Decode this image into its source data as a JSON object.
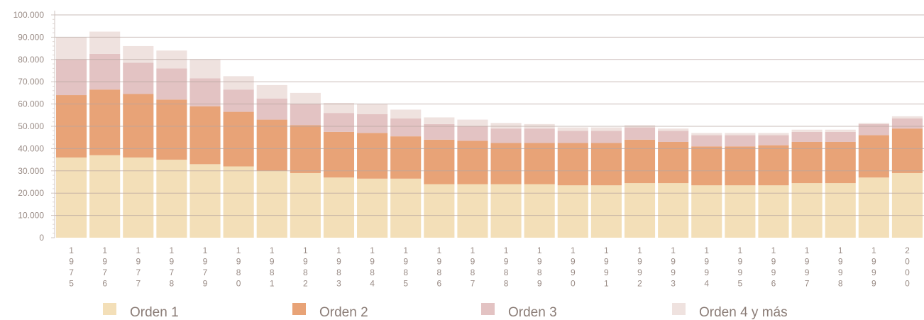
{
  "chart_data": {
    "type": "bar",
    "stacked": true,
    "categories": [
      "1975",
      "1976",
      "1977",
      "1978",
      "1979",
      "1980",
      "1981",
      "1982",
      "1983",
      "1984",
      "1985",
      "1986",
      "1987",
      "1988",
      "1989",
      "1990",
      "1991",
      "1992",
      "1993",
      "1994",
      "1995",
      "1996",
      "1997",
      "1998",
      "1999",
      "2000"
    ],
    "series": [
      {
        "name": "Orden 1",
        "color": "#f3dfb8",
        "values": [
          36000,
          37000,
          36000,
          35000,
          33000,
          32000,
          30000,
          29000,
          27000,
          26500,
          26500,
          24000,
          24000,
          24000,
          24000,
          23500,
          23500,
          24500,
          24500,
          23500,
          23500,
          23500,
          24500,
          24500,
          27000,
          29000
        ]
      },
      {
        "name": "Orden 2",
        "color": "#e8a377",
        "values": [
          28000,
          29500,
          28500,
          27000,
          26000,
          24500,
          23000,
          21500,
          20500,
          20500,
          19000,
          20000,
          19500,
          18500,
          18500,
          19000,
          19000,
          19500,
          18500,
          17500,
          17500,
          18000,
          18500,
          18500,
          19000,
          20000
        ]
      },
      {
        "name": "Orden 3",
        "color": "#e3c3c3",
        "values": [
          16000,
          16000,
          14000,
          14000,
          12500,
          10000,
          9500,
          9500,
          8500,
          8500,
          8000,
          7000,
          6500,
          6500,
          6500,
          5500,
          5500,
          5500,
          5000,
          5000,
          5000,
          4500,
          4500,
          4500,
          5000,
          4500
        ]
      },
      {
        "name": "Orden 4 y más",
        "color": "#efe2df",
        "values": [
          10000,
          10000,
          7500,
          8000,
          8500,
          6000,
          6000,
          5000,
          4500,
          4500,
          4000,
          3000,
          3000,
          2500,
          2000,
          1500,
          1500,
          1000,
          1000,
          1000,
          1000,
          1000,
          1000,
          1000,
          500,
          1000
        ]
      }
    ],
    "ylim": [
      0,
      100000
    ],
    "yticks": [
      "0",
      "10.000",
      "20.000",
      "30.000",
      "40.000",
      "50.000",
      "60.000",
      "70.000",
      "80.000",
      "90.000",
      "100.000"
    ],
    "title": "",
    "xlabel": "",
    "ylabel": "",
    "grid": true,
    "legend": "bottom"
  }
}
